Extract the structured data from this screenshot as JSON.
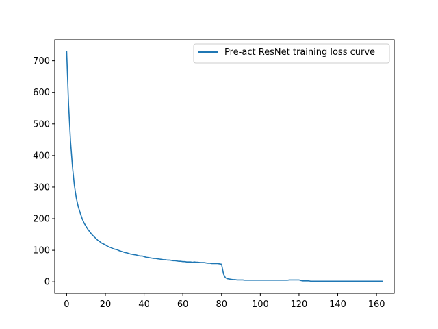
{
  "chart_data": {
    "type": "line",
    "title": "",
    "xlabel": "",
    "ylabel": "",
    "xlim": [
      -6.15,
      169.15
    ],
    "ylim": [
      -36.5,
      766.5
    ],
    "xticks": [
      0,
      20,
      40,
      60,
      80,
      100,
      120,
      140,
      160
    ],
    "yticks": [
      0,
      100,
      200,
      300,
      400,
      500,
      600,
      700
    ],
    "grid": false,
    "legend_position": "top-right",
    "series": [
      {
        "name": "Pre-act ResNet training loss curve",
        "color": "#1f77b4",
        "x": [
          0,
          1,
          2,
          3,
          4,
          5,
          6,
          7,
          8,
          9,
          10,
          11,
          12,
          13,
          14,
          15,
          16,
          17,
          18,
          19,
          20,
          21,
          22,
          23,
          24,
          25,
          26,
          27,
          28,
          29,
          30,
          31,
          32,
          33,
          34,
          35,
          36,
          37,
          38,
          39,
          40,
          41,
          42,
          43,
          44,
          45,
          46,
          47,
          48,
          49,
          50,
          51,
          52,
          53,
          54,
          55,
          56,
          57,
          58,
          59,
          60,
          61,
          62,
          63,
          64,
          65,
          66,
          67,
          68,
          69,
          70,
          71,
          72,
          73,
          74,
          75,
          76,
          77,
          78,
          79,
          80,
          81,
          82,
          83,
          84,
          85,
          86,
          87,
          88,
          89,
          90,
          91,
          92,
          93,
          94,
          95,
          96,
          97,
          98,
          99,
          100,
          101,
          102,
          103,
          104,
          105,
          106,
          107,
          108,
          109,
          110,
          111,
          112,
          113,
          114,
          115,
          116,
          117,
          118,
          119,
          120,
          121,
          122,
          123,
          124,
          125,
          126,
          127,
          128,
          129,
          130,
          131,
          132,
          133,
          134,
          135,
          136,
          137,
          138,
          139,
          140,
          141,
          142,
          143,
          144,
          145,
          146,
          147,
          148,
          149,
          150,
          151,
          152,
          153,
          154,
          155,
          156,
          157,
          158,
          159,
          160,
          161,
          162,
          163
        ],
        "y": [
          730,
          560,
          445,
          365,
          305,
          265,
          238,
          218,
          200,
          186,
          176,
          166,
          158,
          150,
          144,
          138,
          132,
          128,
          123,
          120,
          117,
          113,
          110,
          108,
          105,
          103,
          102,
          99,
          97,
          95,
          93,
          92,
          90,
          88,
          87,
          86,
          85,
          83,
          82,
          82,
          80,
          78,
          77,
          76,
          75,
          74,
          74,
          73,
          72,
          71,
          70,
          70,
          69,
          69,
          68,
          67,
          67,
          66,
          65,
          65,
          64,
          64,
          63,
          63,
          63,
          62,
          63,
          62,
          62,
          61,
          61,
          61,
          60,
          59,
          59,
          58,
          58,
          58,
          58,
          57,
          56,
          25,
          13,
          10,
          9,
          8,
          7,
          7,
          6,
          6,
          6,
          6,
          5,
          5,
          5,
          5,
          5,
          5,
          5,
          5,
          5,
          5,
          5,
          5,
          5,
          5,
          5,
          5,
          5,
          5,
          5,
          5,
          5,
          5,
          5,
          6,
          6,
          6,
          6,
          6,
          6,
          4,
          3,
          3,
          3,
          3,
          2,
          2,
          2,
          2,
          2,
          2,
          2,
          2,
          2,
          2,
          2,
          2,
          2,
          2,
          2,
          2,
          2,
          2,
          2,
          2,
          2,
          2,
          2,
          2,
          2,
          2,
          2,
          2,
          2,
          2,
          2,
          2,
          2,
          2,
          2,
          2,
          2,
          2
        ]
      }
    ]
  }
}
